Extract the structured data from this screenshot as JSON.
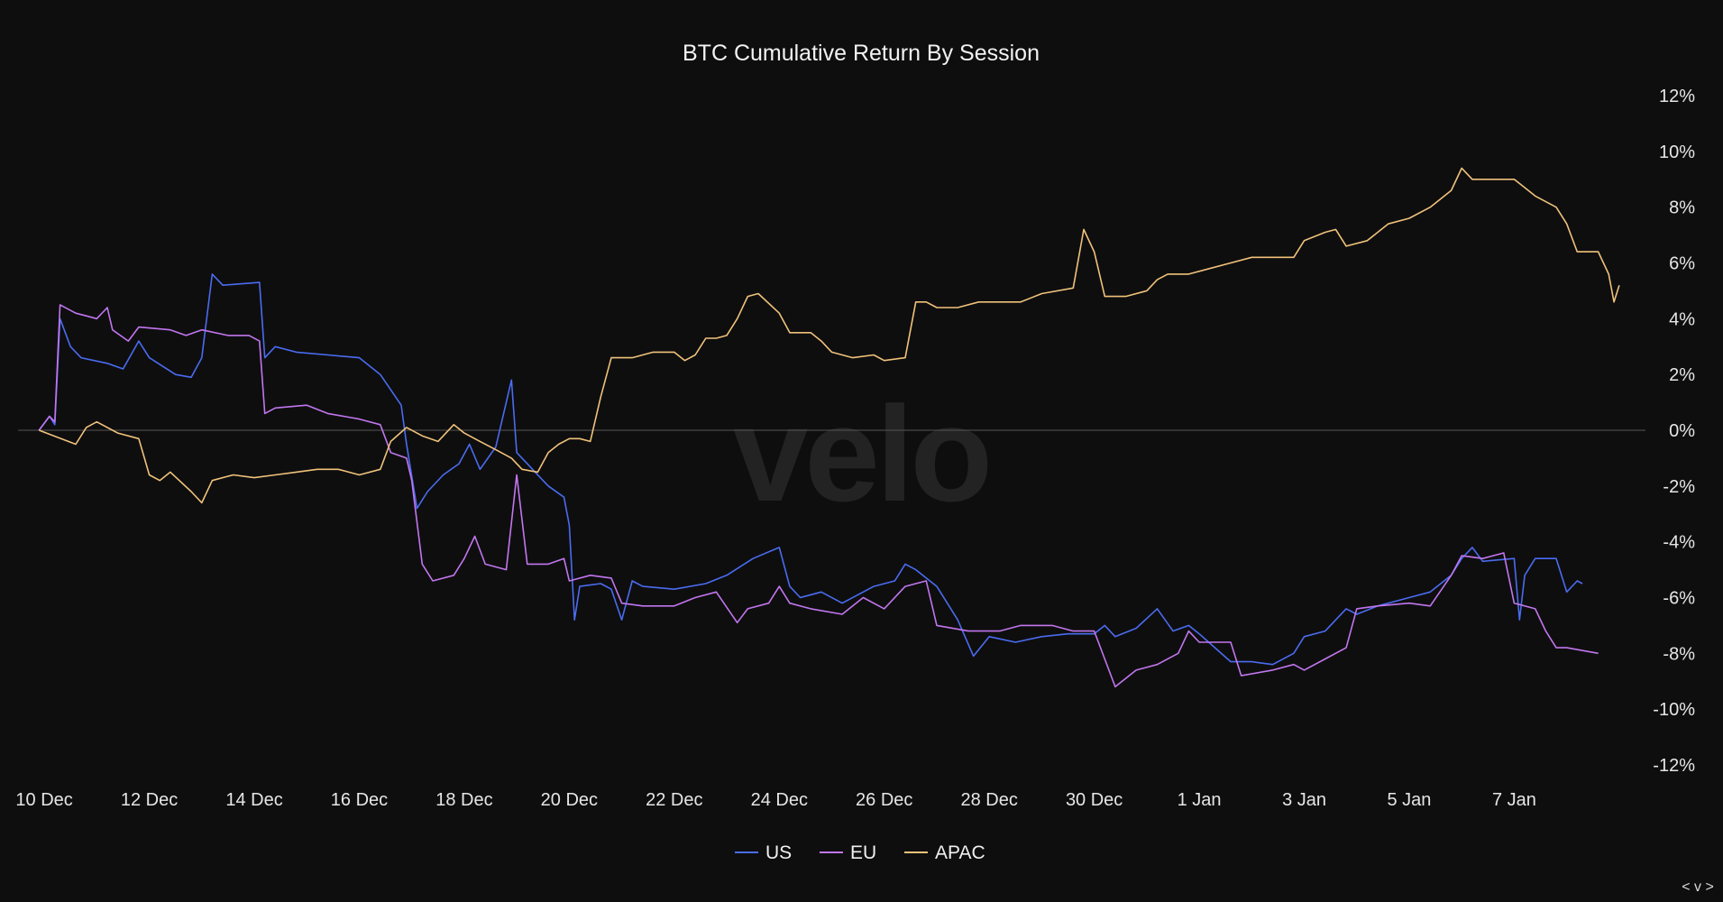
{
  "chart_data": {
    "type": "line",
    "title": "BTC Cumulative Return By Session",
    "watermark": "velo",
    "nav_label": "< v >",
    "x_ticks": [
      "10 Dec",
      "12 Dec",
      "14 Dec",
      "16 Dec",
      "18 Dec",
      "20 Dec",
      "22 Dec",
      "24 Dec",
      "26 Dec",
      "28 Dec",
      "30 Dec",
      "1 Jan",
      "3 Jan",
      "5 Jan",
      "7 Jan"
    ],
    "x_tick_days": [
      0,
      2,
      4,
      6,
      8,
      10,
      12,
      14,
      16,
      18,
      20,
      22,
      24,
      26,
      28
    ],
    "xlim": [
      -0.5,
      30.5
    ],
    "y_ticks": [
      "12%",
      "10%",
      "8%",
      "6%",
      "4%",
      "2%",
      "0%",
      "-2%",
      "-4%",
      "-6%",
      "-8%",
      "-10%",
      "-12%"
    ],
    "y_tick_values": [
      12,
      10,
      8,
      6,
      4,
      2,
      0,
      -2,
      -4,
      -6,
      -8,
      -10,
      -12
    ],
    "ylim": [
      -12,
      12
    ],
    "y_axis_position": "right",
    "legend_position": "bottom-center",
    "zero_line": true,
    "series": [
      {
        "name": "US",
        "color": "#4a6cf0",
        "points": [
          [
            -0.1,
            0
          ],
          [
            0.1,
            0.5
          ],
          [
            0.2,
            0.2
          ],
          [
            0.3,
            4.0
          ],
          [
            0.5,
            3.0
          ],
          [
            0.7,
            2.6
          ],
          [
            1.2,
            2.4
          ],
          [
            1.5,
            2.2
          ],
          [
            1.8,
            3.2
          ],
          [
            2.0,
            2.6
          ],
          [
            2.5,
            2.0
          ],
          [
            2.8,
            1.9
          ],
          [
            3.0,
            2.6
          ],
          [
            3.2,
            5.6
          ],
          [
            3.4,
            5.2
          ],
          [
            4.1,
            5.3
          ],
          [
            4.2,
            2.6
          ],
          [
            4.4,
            3.0
          ],
          [
            4.8,
            2.8
          ],
          [
            5.4,
            2.7
          ],
          [
            6.0,
            2.6
          ],
          [
            6.4,
            2.0
          ],
          [
            6.8,
            0.9
          ],
          [
            6.9,
            -0.5
          ],
          [
            7.1,
            -2.8
          ],
          [
            7.3,
            -2.2
          ],
          [
            7.6,
            -1.6
          ],
          [
            7.9,
            -1.2
          ],
          [
            8.1,
            -0.5
          ],
          [
            8.3,
            -1.4
          ],
          [
            8.6,
            -0.6
          ],
          [
            8.9,
            1.8
          ],
          [
            9.0,
            -0.8
          ],
          [
            9.2,
            -1.2
          ],
          [
            9.4,
            -1.6
          ],
          [
            9.6,
            -2.0
          ],
          [
            9.9,
            -2.4
          ],
          [
            10.0,
            -3.4
          ],
          [
            10.1,
            -6.8
          ],
          [
            10.2,
            -5.6
          ],
          [
            10.6,
            -5.5
          ],
          [
            10.8,
            -5.7
          ],
          [
            11.0,
            -6.8
          ],
          [
            11.2,
            -5.4
          ],
          [
            11.4,
            -5.6
          ],
          [
            12.0,
            -5.7
          ],
          [
            12.6,
            -5.5
          ],
          [
            13.0,
            -5.2
          ],
          [
            13.5,
            -4.6
          ],
          [
            14.0,
            -4.2
          ],
          [
            14.2,
            -5.6
          ],
          [
            14.4,
            -6.0
          ],
          [
            14.8,
            -5.8
          ],
          [
            15.2,
            -6.2
          ],
          [
            15.8,
            -5.6
          ],
          [
            16.2,
            -5.4
          ],
          [
            16.4,
            -4.8
          ],
          [
            16.6,
            -5.0
          ],
          [
            17.0,
            -5.6
          ],
          [
            17.4,
            -6.8
          ],
          [
            17.7,
            -8.1
          ],
          [
            18.0,
            -7.4
          ],
          [
            18.5,
            -7.6
          ],
          [
            19.0,
            -7.4
          ],
          [
            19.5,
            -7.3
          ],
          [
            20.0,
            -7.3
          ],
          [
            20.2,
            -7.0
          ],
          [
            20.4,
            -7.4
          ],
          [
            20.8,
            -7.1
          ],
          [
            21.2,
            -6.4
          ],
          [
            21.5,
            -7.2
          ],
          [
            21.8,
            -7.0
          ],
          [
            22.0,
            -7.3
          ],
          [
            22.3,
            -7.8
          ],
          [
            22.6,
            -8.3
          ],
          [
            23.0,
            -8.3
          ],
          [
            23.4,
            -8.4
          ],
          [
            23.8,
            -8.0
          ],
          [
            24.0,
            -7.4
          ],
          [
            24.4,
            -7.2
          ],
          [
            24.8,
            -6.4
          ],
          [
            25.0,
            -6.6
          ],
          [
            25.4,
            -6.3
          ],
          [
            26.0,
            -6.0
          ],
          [
            26.4,
            -5.8
          ],
          [
            26.8,
            -5.2
          ],
          [
            27.0,
            -4.6
          ],
          [
            27.2,
            -4.2
          ],
          [
            27.4,
            -4.7
          ],
          [
            28.0,
            -4.6
          ],
          [
            28.1,
            -6.8
          ],
          [
            28.2,
            -5.2
          ],
          [
            28.4,
            -4.6
          ],
          [
            28.8,
            -4.6
          ],
          [
            29.0,
            -5.8
          ],
          [
            29.2,
            -5.4
          ],
          [
            29.3,
            -5.5
          ]
        ]
      },
      {
        "name": "EU",
        "color": "#c276ee",
        "points": [
          [
            -0.1,
            0
          ],
          [
            0.1,
            0.5
          ],
          [
            0.2,
            0.3
          ],
          [
            0.3,
            4.5
          ],
          [
            0.6,
            4.2
          ],
          [
            0.8,
            4.1
          ],
          [
            1.0,
            4.0
          ],
          [
            1.2,
            4.4
          ],
          [
            1.3,
            3.6
          ],
          [
            1.6,
            3.2
          ],
          [
            1.8,
            3.7
          ],
          [
            2.4,
            3.6
          ],
          [
            2.7,
            3.4
          ],
          [
            3.0,
            3.6
          ],
          [
            3.5,
            3.4
          ],
          [
            3.9,
            3.4
          ],
          [
            4.1,
            3.2
          ],
          [
            4.2,
            0.6
          ],
          [
            4.4,
            0.8
          ],
          [
            5.0,
            0.9
          ],
          [
            5.4,
            0.6
          ],
          [
            6.0,
            0.4
          ],
          [
            6.4,
            0.2
          ],
          [
            6.6,
            -0.8
          ],
          [
            6.9,
            -1.0
          ],
          [
            7.0,
            -1.8
          ],
          [
            7.2,
            -4.8
          ],
          [
            7.4,
            -5.4
          ],
          [
            7.8,
            -5.2
          ],
          [
            8.0,
            -4.6
          ],
          [
            8.2,
            -3.8
          ],
          [
            8.4,
            -4.8
          ],
          [
            8.8,
            -5.0
          ],
          [
            9.0,
            -1.6
          ],
          [
            9.2,
            -4.8
          ],
          [
            9.6,
            -4.8
          ],
          [
            9.9,
            -4.6
          ],
          [
            10.0,
            -5.4
          ],
          [
            10.4,
            -5.2
          ],
          [
            10.8,
            -5.3
          ],
          [
            11.0,
            -6.2
          ],
          [
            11.4,
            -6.3
          ],
          [
            12.0,
            -6.3
          ],
          [
            12.4,
            -6.0
          ],
          [
            12.8,
            -5.8
          ],
          [
            13.2,
            -6.9
          ],
          [
            13.4,
            -6.4
          ],
          [
            13.8,
            -6.2
          ],
          [
            14.0,
            -5.6
          ],
          [
            14.2,
            -6.2
          ],
          [
            14.6,
            -6.4
          ],
          [
            15.2,
            -6.6
          ],
          [
            15.6,
            -6.0
          ],
          [
            16.0,
            -6.4
          ],
          [
            16.4,
            -5.6
          ],
          [
            16.8,
            -5.4
          ],
          [
            17.0,
            -7.0
          ],
          [
            17.6,
            -7.2
          ],
          [
            18.2,
            -7.2
          ],
          [
            18.6,
            -7.0
          ],
          [
            19.2,
            -7.0
          ],
          [
            19.6,
            -7.2
          ],
          [
            20.0,
            -7.2
          ],
          [
            20.4,
            -9.2
          ],
          [
            20.8,
            -8.6
          ],
          [
            21.2,
            -8.4
          ],
          [
            21.6,
            -8.0
          ],
          [
            21.8,
            -7.2
          ],
          [
            22.0,
            -7.6
          ],
          [
            22.6,
            -7.6
          ],
          [
            22.8,
            -8.8
          ],
          [
            23.4,
            -8.6
          ],
          [
            23.8,
            -8.4
          ],
          [
            24.0,
            -8.6
          ],
          [
            24.4,
            -8.2
          ],
          [
            24.8,
            -7.8
          ],
          [
            25.0,
            -6.4
          ],
          [
            25.4,
            -6.3
          ],
          [
            26.0,
            -6.2
          ],
          [
            26.4,
            -6.3
          ],
          [
            26.8,
            -5.2
          ],
          [
            27.0,
            -4.5
          ],
          [
            27.4,
            -4.6
          ],
          [
            27.8,
            -4.4
          ],
          [
            28.0,
            -6.2
          ],
          [
            28.4,
            -6.4
          ],
          [
            28.6,
            -7.2
          ],
          [
            28.8,
            -7.8
          ],
          [
            29.0,
            -7.8
          ],
          [
            29.6,
            -8.0
          ]
        ]
      },
      {
        "name": "APAC",
        "color": "#f0c27a",
        "points": [
          [
            -0.1,
            0
          ],
          [
            0.6,
            -0.5
          ],
          [
            0.8,
            0.1
          ],
          [
            1.0,
            0.3
          ],
          [
            1.4,
            -0.1
          ],
          [
            1.8,
            -0.3
          ],
          [
            2.0,
            -1.6
          ],
          [
            2.2,
            -1.8
          ],
          [
            2.4,
            -1.5
          ],
          [
            2.8,
            -2.2
          ],
          [
            3.0,
            -2.6
          ],
          [
            3.2,
            -1.8
          ],
          [
            3.6,
            -1.6
          ],
          [
            4.0,
            -1.7
          ],
          [
            4.4,
            -1.6
          ],
          [
            4.8,
            -1.5
          ],
          [
            5.2,
            -1.4
          ],
          [
            5.6,
            -1.4
          ],
          [
            6.0,
            -1.6
          ],
          [
            6.4,
            -1.4
          ],
          [
            6.6,
            -0.4
          ],
          [
            6.9,
            0.1
          ],
          [
            7.2,
            -0.2
          ],
          [
            7.5,
            -0.4
          ],
          [
            7.8,
            0.2
          ],
          [
            8.0,
            -0.1
          ],
          [
            8.3,
            -0.4
          ],
          [
            8.6,
            -0.7
          ],
          [
            8.9,
            -1.0
          ],
          [
            9.1,
            -1.4
          ],
          [
            9.4,
            -1.5
          ],
          [
            9.6,
            -0.8
          ],
          [
            9.8,
            -0.5
          ],
          [
            10.0,
            -0.3
          ],
          [
            10.2,
            -0.3
          ],
          [
            10.4,
            -0.4
          ],
          [
            10.6,
            1.2
          ],
          [
            10.8,
            2.6
          ],
          [
            11.2,
            2.6
          ],
          [
            11.6,
            2.8
          ],
          [
            12.0,
            2.8
          ],
          [
            12.2,
            2.5
          ],
          [
            12.4,
            2.7
          ],
          [
            12.6,
            3.3
          ],
          [
            12.8,
            3.3
          ],
          [
            13.0,
            3.4
          ],
          [
            13.2,
            4.0
          ],
          [
            13.4,
            4.8
          ],
          [
            13.6,
            4.9
          ],
          [
            14.0,
            4.2
          ],
          [
            14.2,
            3.5
          ],
          [
            14.6,
            3.5
          ],
          [
            14.8,
            3.2
          ],
          [
            15.0,
            2.8
          ],
          [
            15.4,
            2.6
          ],
          [
            15.8,
            2.7
          ],
          [
            16.0,
            2.5
          ],
          [
            16.4,
            2.6
          ],
          [
            16.6,
            4.6
          ],
          [
            16.8,
            4.6
          ],
          [
            17.0,
            4.4
          ],
          [
            17.4,
            4.4
          ],
          [
            17.8,
            4.6
          ],
          [
            18.2,
            4.6
          ],
          [
            18.6,
            4.6
          ],
          [
            19.0,
            4.9
          ],
          [
            19.6,
            5.1
          ],
          [
            19.8,
            7.2
          ],
          [
            20.0,
            6.4
          ],
          [
            20.2,
            4.8
          ],
          [
            20.6,
            4.8
          ],
          [
            21.0,
            5.0
          ],
          [
            21.2,
            5.4
          ],
          [
            21.4,
            5.6
          ],
          [
            21.8,
            5.6
          ],
          [
            22.2,
            5.8
          ],
          [
            22.6,
            6.0
          ],
          [
            23.0,
            6.2
          ],
          [
            23.4,
            6.2
          ],
          [
            23.8,
            6.2
          ],
          [
            24.0,
            6.8
          ],
          [
            24.4,
            7.1
          ],
          [
            24.6,
            7.2
          ],
          [
            24.8,
            6.6
          ],
          [
            25.2,
            6.8
          ],
          [
            25.6,
            7.4
          ],
          [
            26.0,
            7.6
          ],
          [
            26.4,
            8.0
          ],
          [
            26.8,
            8.6
          ],
          [
            27.0,
            9.4
          ],
          [
            27.2,
            9.0
          ],
          [
            27.6,
            9.0
          ],
          [
            28.0,
            9.0
          ],
          [
            28.2,
            8.7
          ],
          [
            28.4,
            8.4
          ],
          [
            28.8,
            8.0
          ],
          [
            29.0,
            7.4
          ],
          [
            29.2,
            6.4
          ],
          [
            29.6,
            6.4
          ],
          [
            29.8,
            5.6
          ],
          [
            29.9,
            4.6
          ],
          [
            30.0,
            5.2
          ]
        ]
      }
    ]
  }
}
